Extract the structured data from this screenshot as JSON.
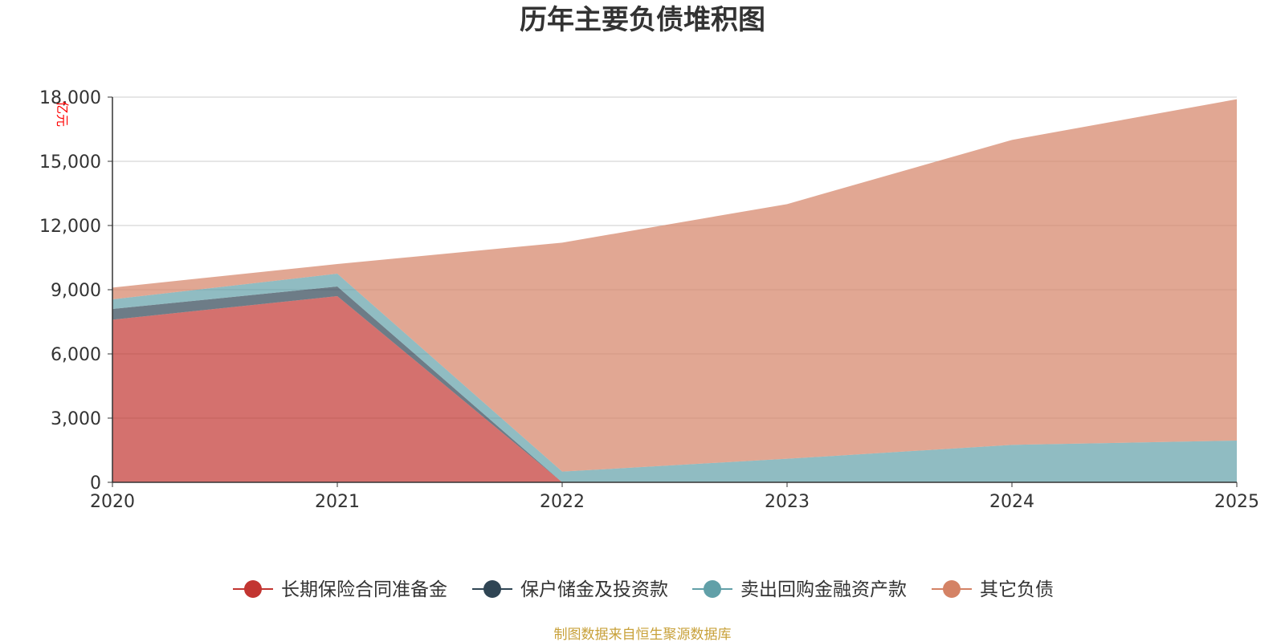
{
  "chart_data": {
    "type": "area",
    "stacked": true,
    "title": "历年主要负债堆积图",
    "unit_label": "亿元",
    "x": [
      "2020",
      "2021",
      "2022",
      "2023",
      "2024",
      "2025"
    ],
    "ylim": [
      0,
      18000
    ],
    "yticks": [
      0,
      3000,
      6000,
      9000,
      12000,
      15000,
      18000
    ],
    "ytick_labels": [
      "0",
      "3,000",
      "6,000",
      "9,000",
      "12,000",
      "15,000",
      "18,000"
    ],
    "grid": true,
    "legend_position": "bottom",
    "series": [
      {
        "name": "长期保险合同准备金",
        "values": [
          7600,
          8700,
          0,
          0,
          0,
          0
        ]
      },
      {
        "name": "保户储金及投资款",
        "values": [
          500,
          450,
          0,
          0,
          0,
          0
        ]
      },
      {
        "name": "卖出回购金融资产款",
        "values": [
          450,
          600,
          500,
          1100,
          1750,
          1950
        ]
      },
      {
        "name": "其它负债",
        "values": [
          550,
          450,
          10700,
          11900,
          14250,
          15950
        ]
      }
    ]
  },
  "colors": {
    "series": [
      "#c23531",
      "#2f4554",
      "#61a0a8",
      "#d48265"
    ],
    "title": "#333333",
    "unit": "#ff0000",
    "source": "#c8a13a",
    "grid": "#cccccc",
    "axis": "#333333"
  },
  "source_text": "制图数据来自恒生聚源数据库"
}
